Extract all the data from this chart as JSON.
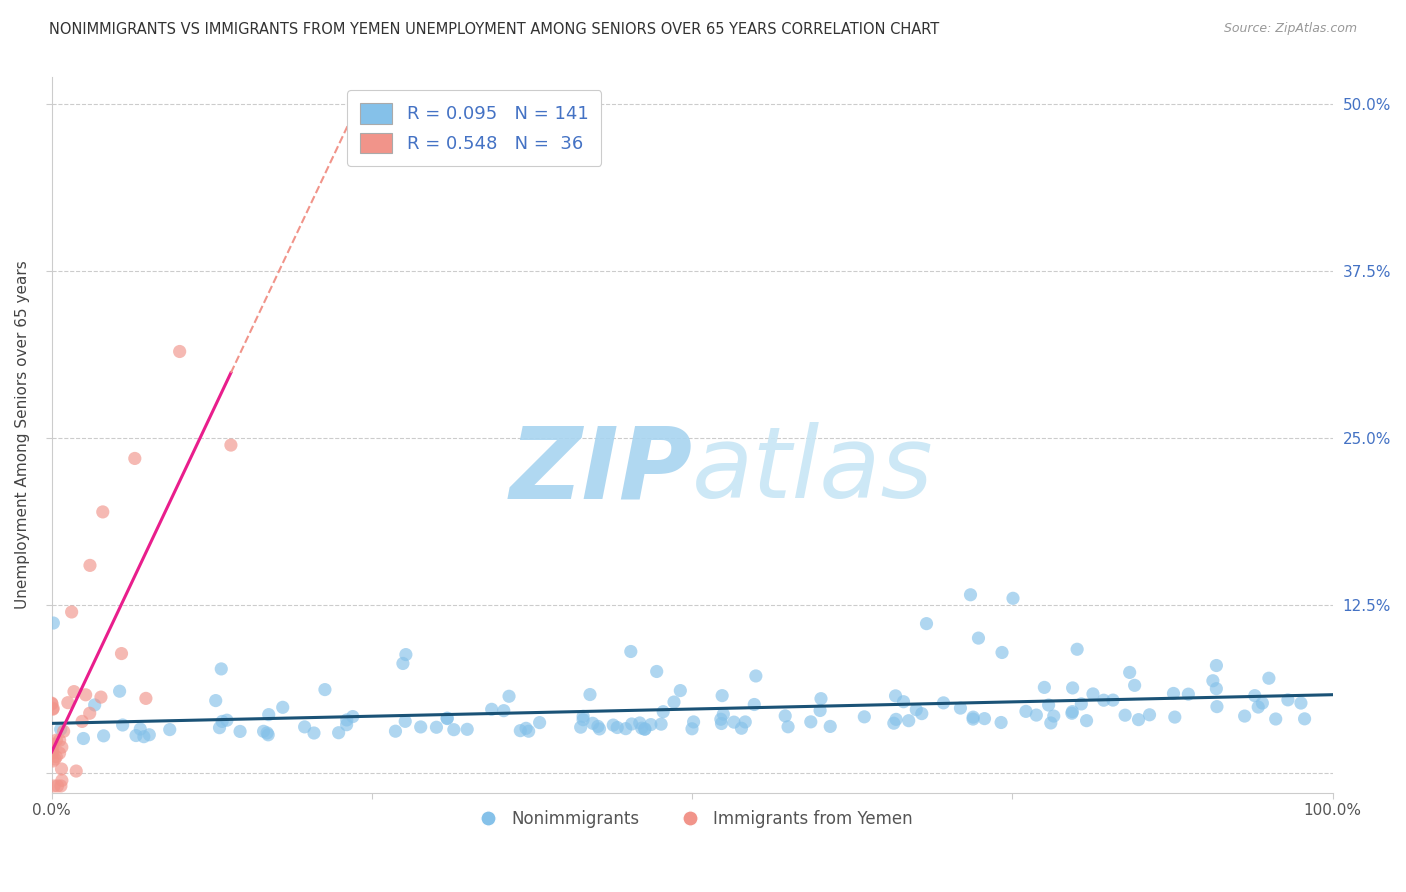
{
  "title": "NONIMMIGRANTS VS IMMIGRANTS FROM YEMEN UNEMPLOYMENT AMONG SENIORS OVER 65 YEARS CORRELATION CHART",
  "source": "Source: ZipAtlas.com",
  "ylabel": "Unemployment Among Seniors over 65 years",
  "xlim": [
    0,
    1.0
  ],
  "ylim": [
    -0.015,
    0.52
  ],
  "yticks": [
    0.0,
    0.125,
    0.25,
    0.375,
    0.5
  ],
  "xticks": [
    0.0,
    0.25,
    0.5,
    0.75,
    1.0
  ],
  "xtick_labels": [
    "0.0%",
    "",
    "",
    "",
    "100.0%"
  ],
  "legend_label1": "Nonimmigrants",
  "legend_label2": "Immigrants from Yemen",
  "R1": 0.095,
  "N1": 141,
  "R2": 0.548,
  "N2": 36,
  "color_blue": "#85c1e9",
  "color_pink": "#f1948a",
  "color_blue_line": "#1a5276",
  "color_pink_line": "#e91e8c",
  "color_pink_dash": "#f1948a",
  "watermark_zip": "ZIP",
  "watermark_atlas": "atlas",
  "watermark_color": "#d6eaf8",
  "background_color": "#ffffff",
  "grid_color": "#cccccc"
}
